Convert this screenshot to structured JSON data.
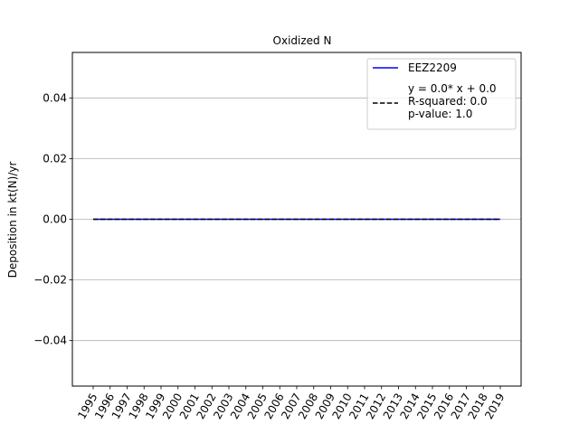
{
  "chart_data": {
    "type": "line",
    "title": "Oxidized N",
    "xlabel": "",
    "ylabel": "Deposition in kt(N)/yr",
    "x": [
      "1995",
      "1996",
      "1997",
      "1998",
      "1999",
      "2000",
      "2001",
      "2002",
      "2003",
      "2004",
      "2005",
      "2006",
      "2007",
      "2008",
      "2009",
      "2010",
      "2011",
      "2012",
      "2013",
      "2014",
      "2015",
      "2016",
      "2017",
      "2018",
      "2019"
    ],
    "series": [
      {
        "name": "EEZ2209",
        "values": [
          0,
          0,
          0,
          0,
          0,
          0,
          0,
          0,
          0,
          0,
          0,
          0,
          0,
          0,
          0,
          0,
          0,
          0,
          0,
          0,
          0,
          0,
          0,
          0,
          0
        ],
        "color": "#0000ff",
        "style": "solid"
      },
      {
        "name": "y = 0.0* x + 0.0\nR-squared: 0.0\np-value: 1.0",
        "values": [
          0,
          0,
          0,
          0,
          0,
          0,
          0,
          0,
          0,
          0,
          0,
          0,
          0,
          0,
          0,
          0,
          0,
          0,
          0,
          0,
          0,
          0,
          0,
          0,
          0
        ],
        "color": "#000000",
        "style": "dashed"
      }
    ],
    "ylim": [
      -0.055,
      0.055
    ],
    "yticks": [
      "−0.04",
      "−0.02",
      "0.00",
      "0.02",
      "0.04"
    ],
    "ytick_values": [
      -0.04,
      -0.02,
      0.0,
      0.02,
      0.04
    ],
    "grid": "y",
    "legend": "top-right"
  }
}
